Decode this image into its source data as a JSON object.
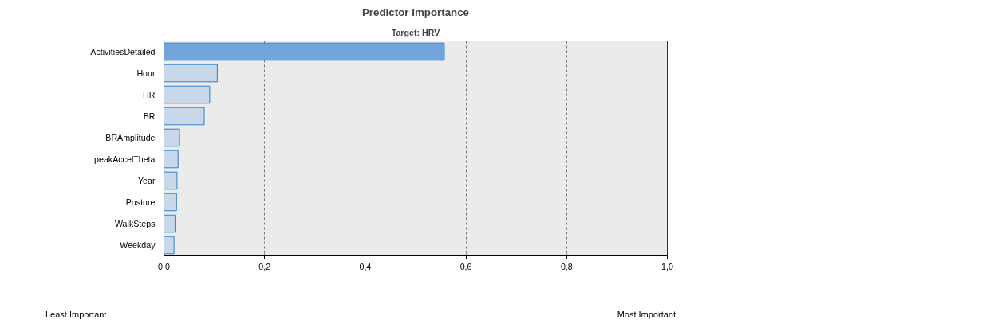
{
  "chart_data": {
    "type": "bar",
    "orientation": "horizontal",
    "title": "Predictor Importance",
    "subtitle": "Target: HRV",
    "categories": [
      "ActivitiesDetailed",
      "Hour",
      "HR",
      "BR",
      "BRAmplitude",
      "peakAccelTheta",
      "Year",
      "Posture",
      "WalkSteps",
      "Weekday"
    ],
    "values": [
      0.557,
      0.106,
      0.091,
      0.08,
      0.031,
      0.028,
      0.026,
      0.025,
      0.022,
      0.02
    ],
    "colors": [
      "#72a6da",
      "#c9d8e8",
      "#c9d8e8",
      "#c9d8e8",
      "#c9d8e8",
      "#c9d8e8",
      "#c9d8e8",
      "#c9d8e8",
      "#c9d8e8",
      "#c9d8e8"
    ],
    "xlim": [
      0,
      1
    ],
    "xticks": [
      {
        "value": 0,
        "label": "0,0"
      },
      {
        "value": 0.2,
        "label": "0,2"
      },
      {
        "value": 0.4,
        "label": "0,4"
      },
      {
        "value": 0.6,
        "label": "0,6"
      },
      {
        "value": 0.8,
        "label": "0,8"
      },
      {
        "value": 1,
        "label": "1,0"
      }
    ],
    "grid": "x",
    "annotations": [
      "Least Important",
      "Most Important"
    ]
  }
}
